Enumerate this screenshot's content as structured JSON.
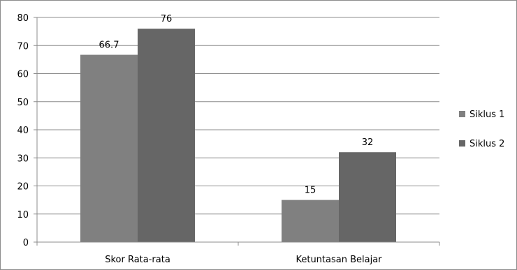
{
  "chart_data": {
    "type": "bar",
    "categories": [
      "Skor Rata-rata",
      "Ketuntasan Belajar"
    ],
    "series": [
      {
        "name": "Siklus 1",
        "values": [
          66.7,
          15
        ],
        "labels": [
          "66.7",
          "15"
        ],
        "color": "#808080"
      },
      {
        "name": "Siklus 2",
        "values": [
          76,
          32
        ],
        "labels": [
          "76",
          "32"
        ],
        "color": "#666666"
      }
    ],
    "ylim": [
      0,
      80
    ],
    "yticks": [
      0,
      10,
      20,
      30,
      40,
      50,
      60,
      70,
      80
    ],
    "grid": true,
    "legend": "right"
  }
}
